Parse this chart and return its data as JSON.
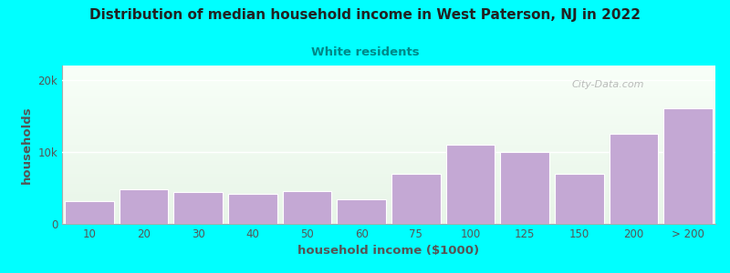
{
  "title": "Distribution of median household income in West Paterson, NJ in 2022",
  "subtitle": "White residents",
  "xlabel": "household income ($1000)",
  "ylabel": "households",
  "background_outer": "#00FFFF",
  "bar_color": "#c4a8d4",
  "bar_edge_color": "#ffffff",
  "title_color": "#222222",
  "subtitle_color": "#008888",
  "axis_label_color": "#555555",
  "tick_label_color": "#555555",
  "categories": [
    "10",
    "20",
    "30",
    "40",
    "50",
    "60",
    "75",
    "100",
    "125",
    "150",
    "200",
    "> 200"
  ],
  "values": [
    3200,
    4800,
    4400,
    4200,
    4600,
    3400,
    7000,
    11000,
    10000,
    7000,
    12500,
    16000
  ],
  "ylim": [
    0,
    22000
  ],
  "yticks": [
    0,
    10000,
    20000
  ],
  "ytick_labels": [
    "0",
    "10k",
    "20k"
  ],
  "bg_top_color": "#e8f5e8",
  "bg_bottom_color": "#f8fff8",
  "watermark_text": "City-Data.com",
  "watermark_color": "#aaaaaa"
}
